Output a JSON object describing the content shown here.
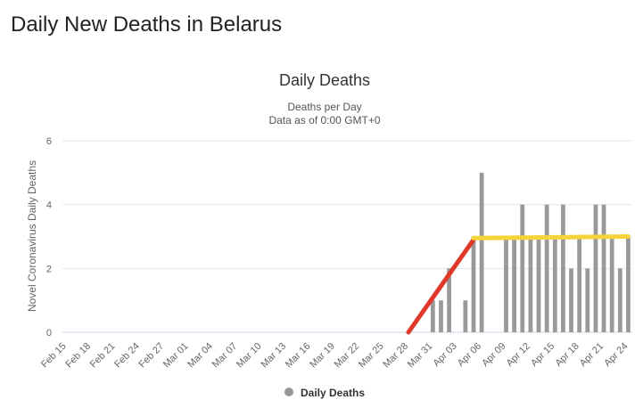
{
  "page": {
    "title": "Daily New Deaths in Belarus"
  },
  "chart_data": {
    "type": "bar",
    "title": "Daily Deaths",
    "subtitle_line1": "Deaths per Day",
    "subtitle_line2": "Data as of 0:00 GMT+0",
    "ylabel": "Novel Coronavirus Daily Deaths",
    "xlabel": "",
    "ylim": [
      0,
      6
    ],
    "yticks": [
      0,
      2,
      4,
      6
    ],
    "tick_labels": [
      "Feb 15",
      "Feb 18",
      "Feb 21",
      "Feb 24",
      "Feb 27",
      "Mar 01",
      "Mar 04",
      "Mar 07",
      "Mar 10",
      "Mar 13",
      "Mar 16",
      "Mar 19",
      "Mar 22",
      "Mar 25",
      "Mar 28",
      "Mar 31",
      "Apr 03",
      "Apr 06",
      "Apr 09",
      "Apr 12",
      "Apr 15",
      "Apr 18",
      "Apr 21",
      "Apr 24"
    ],
    "categories": [
      "Feb 15",
      "Feb 16",
      "Feb 17",
      "Feb 18",
      "Feb 19",
      "Feb 20",
      "Feb 21",
      "Feb 22",
      "Feb 23",
      "Feb 24",
      "Feb 25",
      "Feb 26",
      "Feb 27",
      "Feb 28",
      "Feb 29",
      "Mar 01",
      "Mar 02",
      "Mar 03",
      "Mar 04",
      "Mar 05",
      "Mar 06",
      "Mar 07",
      "Mar 08",
      "Mar 09",
      "Mar 10",
      "Mar 11",
      "Mar 12",
      "Mar 13",
      "Mar 14",
      "Mar 15",
      "Mar 16",
      "Mar 17",
      "Mar 18",
      "Mar 19",
      "Mar 20",
      "Mar 21",
      "Mar 22",
      "Mar 23",
      "Mar 24",
      "Mar 25",
      "Mar 26",
      "Mar 27",
      "Mar 28",
      "Mar 29",
      "Mar 30",
      "Mar 31",
      "Apr 01",
      "Apr 02",
      "Apr 03",
      "Apr 04",
      "Apr 05",
      "Apr 06",
      "Apr 07",
      "Apr 08",
      "Apr 09",
      "Apr 10",
      "Apr 11",
      "Apr 12",
      "Apr 13",
      "Apr 14",
      "Apr 15",
      "Apr 16",
      "Apr 17",
      "Apr 18",
      "Apr 19",
      "Apr 20",
      "Apr 21",
      "Apr 22",
      "Apr 23",
      "Apr 24"
    ],
    "series": [
      {
        "name": "Daily Deaths",
        "color": "#999999",
        "values": [
          0,
          0,
          0,
          0,
          0,
          0,
          0,
          0,
          0,
          0,
          0,
          0,
          0,
          0,
          0,
          0,
          0,
          0,
          0,
          0,
          0,
          0,
          0,
          0,
          0,
          0,
          0,
          0,
          0,
          0,
          0,
          0,
          0,
          0,
          0,
          0,
          0,
          0,
          0,
          0,
          0,
          0,
          0,
          0,
          0,
          1,
          1,
          2,
          0,
          1,
          3,
          5,
          0,
          0,
          3,
          3,
          4,
          3,
          3,
          4,
          3,
          4,
          2,
          3,
          2,
          4,
          4,
          3,
          2,
          3
        ]
      }
    ],
    "trend_lines": [
      {
        "color": "#e0392b",
        "points": [
          [
            "Mar 28",
            0
          ],
          [
            "Apr 05",
            2.9
          ]
        ]
      },
      {
        "color": "#f5d33b",
        "points": [
          [
            "Apr 05",
            2.95
          ],
          [
            "Apr 24",
            3.0
          ]
        ]
      }
    ],
    "grid": true,
    "legend": {
      "position": "bottom-center",
      "label": "Daily Deaths",
      "color": "#999999"
    }
  }
}
